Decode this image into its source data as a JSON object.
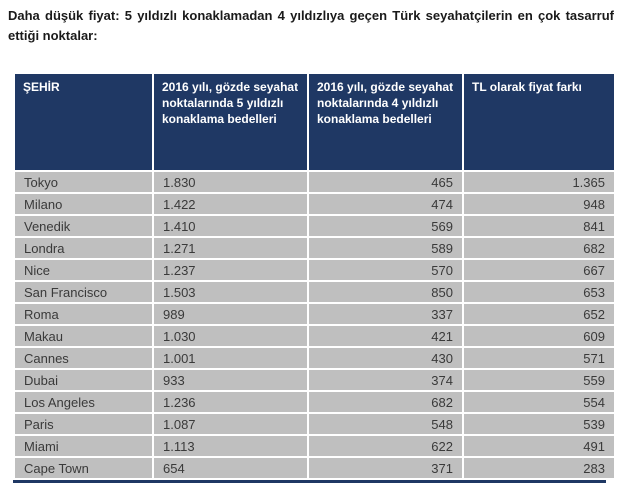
{
  "title": "Daha düşük fiyat: 5 yıldızlı konaklamadan 4 yıldızlıya geçen Türk seyahatçilerin en çok tasarruf ettiği noktalar:",
  "colors": {
    "header_bg": "#1F3864",
    "header_text": "#FFFFFF",
    "row_bg": "#BFBFBF",
    "row_text": "#3A3A3A",
    "separator": "#FFFFFF",
    "table_bottom_border": "#1F3864"
  },
  "table": {
    "headers": [
      "ŞEHİR",
      "2016 yılı, gözde seyahat noktalarında 5 yıldızlı konaklama bedelleri",
      "2016 yılı, gözde seyahat noktalarında 4 yıldızlı konaklama bedelleri",
      "TL olarak fiyat farkı"
    ],
    "rows": [
      {
        "city": "Tokyo",
        "five_star": "1.830",
        "four_star": "465",
        "difference": "1.365"
      },
      {
        "city": "Milano",
        "five_star": "1.422",
        "four_star": "474",
        "difference": "948"
      },
      {
        "city": "Venedik",
        "five_star": "1.410",
        "four_star": "569",
        "difference": "841"
      },
      {
        "city": "Londra",
        "five_star": "1.271",
        "four_star": "589",
        "difference": "682"
      },
      {
        "city": "Nice",
        "five_star": "1.237",
        "four_star": "570",
        "difference": "667"
      },
      {
        "city": "San Francisco",
        "five_star": "1.503",
        "four_star": "850",
        "difference": "653"
      },
      {
        "city": "Roma",
        "five_star": "989",
        "four_star": "337",
        "difference": "652"
      },
      {
        "city": "Makau",
        "five_star": "1.030",
        "four_star": "421",
        "difference": "609"
      },
      {
        "city": "Cannes",
        "five_star": "1.001",
        "four_star": "430",
        "difference": "571"
      },
      {
        "city": "Dubai",
        "five_star": "933",
        "four_star": "374",
        "difference": "559"
      },
      {
        "city": "Los Angeles",
        "five_star": "1.236",
        "four_star": "682",
        "difference": "554"
      },
      {
        "city": "Paris",
        "five_star": "1.087",
        "four_star": "548",
        "difference": "539"
      },
      {
        "city": "Miami",
        "five_star": "1.113",
        "four_star": "622",
        "difference": "491"
      },
      {
        "city": "Cape Town",
        "five_star": "654",
        "four_star": "371",
        "difference": "283"
      }
    ]
  }
}
